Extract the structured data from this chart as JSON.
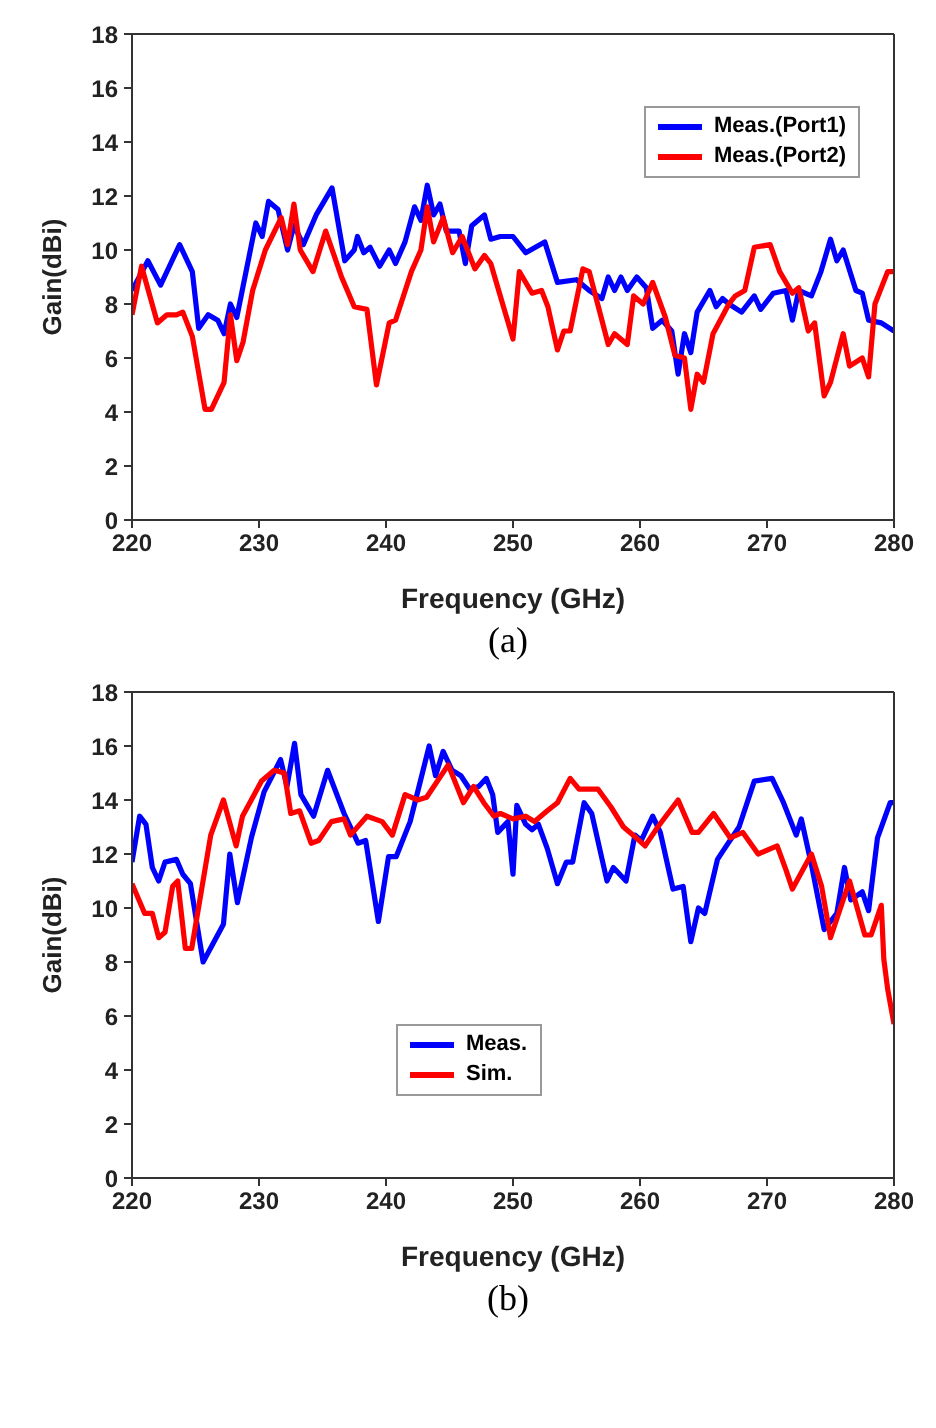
{
  "chart_data": [
    {
      "type": "line",
      "xlabel": "Frequency (GHz)",
      "ylabel": "Gain(dBi)",
      "xlim": [
        220,
        280
      ],
      "ylim": [
        0,
        18
      ],
      "xticks": [
        220,
        230,
        240,
        250,
        260,
        270,
        280
      ],
      "yticks": [
        0,
        2,
        4,
        6,
        8,
        10,
        12,
        14,
        16,
        18
      ],
      "grid": false,
      "legend": "top right",
      "marker": "none",
      "line_style": "solid",
      "annotations": [
        "(a)"
      ],
      "series": [
        {
          "name": "Meas.(Port1)",
          "color": "#0000ff",
          "x": [
            220,
            221.25,
            222.25,
            223.75,
            224.75,
            225.25,
            226,
            226.75,
            227.25,
            227.75,
            228.25,
            229.75,
            230.25,
            230.75,
            231.5,
            232.25,
            232.75,
            233.5,
            234.5,
            235.75,
            236.75,
            237.5,
            237.75,
            238.25,
            238.75,
            239.5,
            240.25,
            240.75,
            241.5,
            242.25,
            242.75,
            243.25,
            243.75,
            244.25,
            244.75,
            245.75,
            246.25,
            246.75,
            247.75,
            248.25,
            249,
            250,
            251,
            252.5,
            253.5,
            255,
            256,
            257,
            257.5,
            258,
            258.5,
            259,
            259.75,
            260.5,
            261,
            261.75,
            262.5,
            263,
            263.5,
            264,
            264.5,
            265.5,
            266,
            266.5,
            267,
            268,
            269,
            269.5,
            270.5,
            271.5,
            272,
            272.5,
            273.5,
            274.25,
            275,
            275.5,
            276,
            277,
            277.5,
            278,
            279,
            280
          ],
          "values": [
            8.5,
            9.6,
            8.7,
            10.2,
            9.2,
            7.1,
            7.6,
            7.4,
            6.9,
            8.0,
            7.5,
            11.0,
            10.5,
            11.8,
            11.5,
            10.0,
            10.9,
            10.2,
            11.3,
            12.3,
            9.6,
            10.0,
            10.5,
            9.9,
            10.1,
            9.4,
            10.0,
            9.5,
            10.3,
            11.6,
            11.1,
            12.4,
            11.3,
            11.7,
            10.7,
            10.7,
            9.5,
            10.9,
            11.3,
            10.4,
            10.5,
            10.5,
            9.9,
            10.3,
            8.8,
            8.9,
            8.5,
            8.2,
            9.0,
            8.5,
            9.0,
            8.5,
            9.0,
            8.6,
            7.1,
            7.4,
            7.0,
            5.4,
            6.9,
            6.2,
            7.7,
            8.5,
            7.9,
            8.2,
            8.0,
            7.7,
            8.3,
            7.8,
            8.4,
            8.5,
            7.4,
            8.5,
            8.3,
            9.2,
            10.4,
            9.6,
            10.0,
            8.5,
            8.4,
            7.4,
            7.3,
            7.0
          ]
        },
        {
          "name": "Meas.(Port2)",
          "color": "#ff0000",
          "x": [
            220,
            220.75,
            222,
            222.75,
            223.5,
            224,
            224.75,
            225.75,
            226.25,
            227.25,
            227.75,
            228.25,
            228.75,
            229.5,
            230.5,
            231.75,
            232.25,
            232.75,
            233.25,
            234.25,
            235.25,
            236.5,
            237.5,
            238.5,
            239.25,
            240.25,
            240.75,
            242,
            242.75,
            243.25,
            243.75,
            244.5,
            245.25,
            246,
            247,
            247.75,
            248.25,
            249,
            250,
            250.5,
            251.5,
            252.25,
            252.75,
            253.5,
            254,
            254.5,
            255.5,
            256,
            257.5,
            258,
            259,
            259.5,
            260.25,
            261,
            262,
            262.75,
            263.5,
            264,
            264.5,
            265,
            265.75,
            267,
            267.5,
            268.25,
            269,
            270.25,
            271,
            272,
            272.5,
            273.25,
            273.75,
            274.5,
            275,
            276,
            276.5,
            277.5,
            278,
            278.5,
            279.5,
            280
          ],
          "values": [
            7.6,
            9.4,
            7.3,
            7.6,
            7.6,
            7.7,
            6.8,
            4.1,
            4.1,
            5.1,
            7.6,
            5.9,
            6.6,
            8.5,
            10.0,
            11.2,
            10.2,
            11.7,
            10.0,
            9.2,
            10.7,
            9.0,
            7.9,
            7.8,
            5.0,
            7.3,
            7.4,
            9.2,
            10.0,
            11.6,
            10.3,
            11.2,
            9.9,
            10.5,
            9.3,
            9.8,
            9.5,
            8.3,
            6.7,
            9.2,
            8.4,
            8.5,
            7.9,
            6.3,
            7.0,
            7.0,
            9.3,
            9.2,
            6.5,
            6.9,
            6.5,
            8.3,
            8.0,
            8.8,
            7.5,
            6.1,
            6.0,
            4.1,
            5.4,
            5.1,
            6.9,
            8.0,
            8.3,
            8.5,
            10.1,
            10.2,
            9.2,
            8.4,
            8.6,
            7.0,
            7.3,
            4.6,
            5.1,
            6.9,
            5.7,
            6.0,
            5.3,
            8.0,
            9.2,
            9.2
          ]
        }
      ]
    },
    {
      "type": "line",
      "xlabel": "Frequency (GHz)",
      "ylabel": "Gain(dBi)",
      "xlim": [
        220,
        280
      ],
      "ylim": [
        0,
        18
      ],
      "xticks": [
        220,
        230,
        240,
        250,
        260,
        270,
        280
      ],
      "yticks": [
        0,
        2,
        4,
        6,
        8,
        10,
        12,
        14,
        16,
        18
      ],
      "grid": false,
      "legend": "center",
      "marker": "none",
      "line_style": "solid",
      "annotations": [
        "(b)"
      ],
      "series": [
        {
          "name": "Meas.",
          "color": "#0000ff",
          "x": [
            220,
            220.6,
            221.1,
            221.6,
            222.1,
            222.6,
            223.5,
            224,
            224.6,
            225.6,
            227.2,
            227.7,
            228.3,
            229.4,
            230.4,
            231.7,
            232.2,
            232.8,
            233.3,
            234.3,
            235.4,
            236.7,
            237.8,
            238.4,
            239.4,
            240.2,
            240.8,
            241.9,
            242.6,
            243.4,
            243.9,
            244.5,
            245.2,
            245.9,
            246.6,
            247.3,
            247.9,
            248.4,
            248.8,
            249.6,
            250,
            250.3,
            251,
            251.5,
            252,
            252.7,
            253.5,
            254.2,
            254.7,
            255.6,
            256.2,
            257.4,
            257.9,
            258.9,
            259.6,
            260.1,
            261,
            261.6,
            262.6,
            263.4,
            264,
            264.6,
            265.1,
            266.1,
            266.8,
            267.8,
            269,
            270.4,
            271.3,
            272.3,
            272.7,
            273.5,
            274.5,
            275.5,
            276.1,
            276.6,
            277.5,
            278,
            278.7,
            279.7,
            280
          ],
          "values": [
            11.7,
            13.4,
            13.1,
            11.5,
            11.0,
            11.7,
            11.8,
            11.25,
            10.9,
            8.0,
            9.4,
            12.0,
            10.2,
            12.6,
            14.3,
            15.5,
            14.5,
            16.1,
            14.2,
            13.4,
            15.1,
            13.5,
            12.4,
            12.5,
            9.5,
            11.9,
            11.9,
            13.2,
            14.5,
            16.0,
            14.9,
            15.8,
            15.1,
            14.9,
            14.4,
            14.5,
            14.8,
            14.2,
            12.8,
            13.2,
            11.25,
            13.8,
            13.1,
            12.9,
            13.1,
            12.2,
            10.9,
            11.7,
            11.7,
            13.9,
            13.5,
            11.0,
            11.5,
            11.0,
            12.7,
            12.5,
            13.4,
            12.8,
            10.7,
            10.8,
            8.75,
            10.0,
            9.8,
            11.8,
            12.3,
            13.0,
            14.7,
            14.8,
            13.9,
            12.7,
            13.3,
            11.6,
            9.2,
            9.8,
            11.5,
            10.3,
            10.6,
            9.9,
            12.6,
            13.9,
            13.9
          ]
        },
        {
          "name": "Sim.",
          "color": "#ff0000",
          "x": [
            220,
            221,
            221.6,
            222.1,
            222.6,
            223.2,
            223.6,
            224.2,
            224.7,
            226.2,
            227.2,
            228.2,
            228.7,
            230.2,
            231.2,
            232,
            232.5,
            233.2,
            234.1,
            234.7,
            235.7,
            236.7,
            237.2,
            238.5,
            239.7,
            240.5,
            241.5,
            242.5,
            243.2,
            244.9,
            246.1,
            246.9,
            247.7,
            248.5,
            249,
            249.5,
            250,
            251,
            251.7,
            252.7,
            253.5,
            254.5,
            255.2,
            256.7,
            257.7,
            258.7,
            259.7,
            260.4,
            261.4,
            263,
            264.1,
            264.6,
            265.8,
            267.1,
            268.1,
            269.3,
            270.8,
            271.5,
            272,
            273.5,
            274.3,
            275,
            276.5,
            277.7,
            278.2,
            279,
            279.2,
            279.5,
            280
          ],
          "values": [
            10.9,
            9.8,
            9.8,
            8.9,
            9.1,
            10.8,
            11.0,
            8.5,
            8.5,
            12.7,
            14.0,
            12.3,
            13.4,
            14.7,
            15.1,
            15.0,
            13.5,
            13.6,
            12.4,
            12.5,
            13.2,
            13.3,
            12.7,
            13.4,
            13.2,
            12.7,
            14.2,
            14.0,
            14.1,
            15.3,
            13.9,
            14.5,
            13.9,
            13.4,
            13.5,
            13.4,
            13.3,
            13.4,
            13.2,
            13.6,
            13.9,
            14.8,
            14.4,
            14.4,
            13.75,
            13.0,
            12.6,
            12.3,
            13.0,
            14.0,
            12.8,
            12.8,
            13.5,
            12.6,
            12.8,
            12.0,
            12.3,
            11.4,
            10.7,
            12.0,
            10.8,
            8.9,
            11.0,
            9.0,
            9.0,
            10.1,
            8.1,
            7.0,
            5.7
          ]
        }
      ]
    }
  ]
}
